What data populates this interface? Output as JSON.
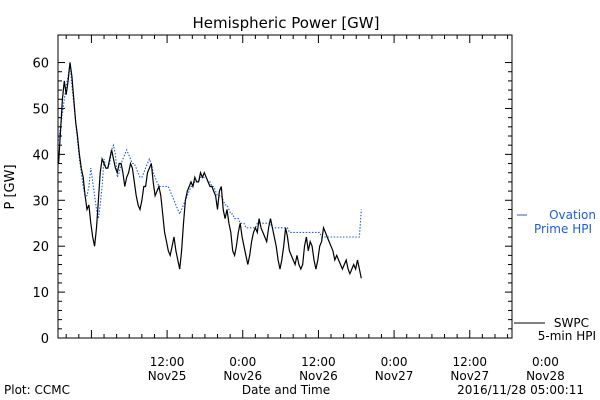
{
  "chart_data": {
    "type": "line",
    "title": "Hemispheric Power [GW]",
    "xlabel": "Date and Time",
    "ylabel": "P [GW]",
    "ylim": [
      0,
      66
    ],
    "xlim": [
      -5.3,
      66.7
    ],
    "x_units": "hours since 2016-11-25 00:00",
    "yticks": [
      0,
      10,
      20,
      30,
      40,
      50,
      60
    ],
    "xticks": [
      {
        "x": 12,
        "label": "12:00",
        "sublabel": "Nov25"
      },
      {
        "x": 24,
        "label": "0:00",
        "sublabel": "Nov26"
      },
      {
        "x": 36,
        "label": "12:00",
        "sublabel": "Nov26"
      },
      {
        "x": 48,
        "label": "0:00",
        "sublabel": "Nov27"
      },
      {
        "x": 60,
        "label": "12:00",
        "sublabel": "Nov27"
      },
      {
        "x": 72,
        "label": "0:00",
        "sublabel": "Nov28"
      }
    ],
    "series": [
      {
        "name": "SWPC",
        "name2": "5-min HPI",
        "color": "#000000",
        "style": "solid",
        "points": [
          [
            -5.2,
            38
          ],
          [
            -4.9,
            45
          ],
          [
            -4.6,
            52
          ],
          [
            -4.3,
            56
          ],
          [
            -4.0,
            53
          ],
          [
            -3.7,
            56
          ],
          [
            -3.4,
            60
          ],
          [
            -3.1,
            57
          ],
          [
            -2.8,
            52
          ],
          [
            -2.5,
            47
          ],
          [
            -2.2,
            44
          ],
          [
            -1.9,
            40
          ],
          [
            -1.6,
            37
          ],
          [
            -1.3,
            35
          ],
          [
            -1.0,
            31
          ],
          [
            -0.7,
            28
          ],
          [
            -0.4,
            29
          ],
          [
            -0.1,
            25
          ],
          [
            0.2,
            22
          ],
          [
            0.5,
            20
          ],
          [
            0.8,
            24
          ],
          [
            1.1,
            30
          ],
          [
            1.4,
            36
          ],
          [
            1.7,
            39
          ],
          [
            2.0,
            38
          ],
          [
            2.3,
            37
          ],
          [
            2.6,
            37
          ],
          [
            2.9,
            39
          ],
          [
            3.2,
            41
          ],
          [
            3.5,
            39
          ],
          [
            3.8,
            37
          ],
          [
            4.1,
            36
          ],
          [
            4.4,
            38
          ],
          [
            4.7,
            38
          ],
          [
            5.0,
            36
          ],
          [
            5.3,
            33
          ],
          [
            5.6,
            35
          ],
          [
            5.9,
            36
          ],
          [
            6.2,
            38
          ],
          [
            6.5,
            37
          ],
          [
            6.8,
            34
          ],
          [
            7.1,
            31
          ],
          [
            7.4,
            29
          ],
          [
            7.7,
            28
          ],
          [
            8.0,
            30
          ],
          [
            8.3,
            33
          ],
          [
            8.6,
            33
          ],
          [
            8.9,
            36
          ],
          [
            9.2,
            37
          ],
          [
            9.5,
            38
          ],
          [
            9.8,
            34
          ],
          [
            10.1,
            31
          ],
          [
            10.4,
            32
          ],
          [
            10.7,
            33
          ],
          [
            11.0,
            31
          ],
          [
            11.3,
            27
          ],
          [
            11.6,
            23
          ],
          [
            11.9,
            21
          ],
          [
            12.2,
            19
          ],
          [
            12.5,
            18
          ],
          [
            12.8,
            20
          ],
          [
            13.1,
            22
          ],
          [
            13.4,
            19
          ],
          [
            13.7,
            17
          ],
          [
            14.0,
            15
          ],
          [
            14.3,
            19
          ],
          [
            14.6,
            25
          ],
          [
            14.9,
            30
          ],
          [
            15.2,
            32
          ],
          [
            15.5,
            33
          ],
          [
            15.8,
            34
          ],
          [
            16.1,
            33
          ],
          [
            16.4,
            35
          ],
          [
            16.7,
            34
          ],
          [
            17.0,
            34
          ],
          [
            17.3,
            36
          ],
          [
            17.6,
            35
          ],
          [
            17.9,
            36
          ],
          [
            18.2,
            35
          ],
          [
            18.5,
            34
          ],
          [
            18.8,
            33
          ],
          [
            19.1,
            33
          ],
          [
            19.4,
            32
          ],
          [
            19.7,
            31
          ],
          [
            20.0,
            28
          ],
          [
            20.3,
            32
          ],
          [
            20.6,
            33
          ],
          [
            20.9,
            28
          ],
          [
            21.2,
            26
          ],
          [
            21.5,
            28
          ],
          [
            21.8,
            25
          ],
          [
            22.1,
            23
          ],
          [
            22.4,
            19
          ],
          [
            22.7,
            18
          ],
          [
            23.0,
            20
          ],
          [
            23.3,
            23
          ],
          [
            23.6,
            25
          ],
          [
            23.9,
            22
          ],
          [
            24.2,
            20
          ],
          [
            24.5,
            18
          ],
          [
            24.8,
            16
          ],
          [
            25.1,
            18
          ],
          [
            25.4,
            21
          ],
          [
            25.7,
            23
          ],
          [
            26.0,
            24
          ],
          [
            26.3,
            23
          ],
          [
            26.6,
            26
          ],
          [
            26.9,
            24
          ],
          [
            27.2,
            23
          ],
          [
            27.5,
            22
          ],
          [
            27.8,
            21
          ],
          [
            28.1,
            24
          ],
          [
            28.4,
            26
          ],
          [
            28.7,
            24
          ],
          [
            29.0,
            22
          ],
          [
            29.3,
            20
          ],
          [
            29.6,
            17
          ],
          [
            29.9,
            15
          ],
          [
            30.2,
            17
          ],
          [
            30.5,
            20
          ],
          [
            30.8,
            24
          ],
          [
            31.1,
            22
          ],
          [
            31.4,
            19
          ],
          [
            31.7,
            18
          ],
          [
            32.0,
            17
          ],
          [
            32.3,
            16
          ],
          [
            32.6,
            18
          ],
          [
            32.9,
            16
          ],
          [
            33.2,
            15
          ],
          [
            33.5,
            16
          ],
          [
            33.8,
            20
          ],
          [
            34.1,
            22
          ],
          [
            34.4,
            19
          ],
          [
            34.7,
            21
          ],
          [
            35.0,
            20
          ],
          [
            35.3,
            17
          ],
          [
            35.6,
            15
          ],
          [
            35.9,
            17
          ],
          [
            36.2,
            20
          ],
          [
            36.5,
            21
          ],
          [
            36.8,
            24
          ],
          [
            37.1,
            23
          ],
          [
            37.4,
            22
          ],
          [
            37.7,
            21
          ],
          [
            38.0,
            20
          ],
          [
            38.3,
            19
          ],
          [
            38.6,
            17
          ],
          [
            38.9,
            18
          ],
          [
            39.2,
            17
          ],
          [
            39.5,
            16
          ],
          [
            39.8,
            15
          ],
          [
            40.1,
            16
          ],
          [
            40.4,
            17
          ],
          [
            40.7,
            15
          ],
          [
            41.0,
            14
          ],
          [
            41.3,
            15
          ],
          [
            41.6,
            16
          ],
          [
            41.9,
            15
          ],
          [
            42.2,
            17
          ],
          [
            42.5,
            15
          ],
          [
            42.8,
            13
          ]
        ]
      },
      {
        "name": "Ovation",
        "name2": "Prime HPI",
        "color": "#1f5fd0",
        "style": "dotted",
        "points": [
          [
            -5.2,
            43
          ],
          [
            -4.9,
            46
          ],
          [
            -4.6,
            49
          ],
          [
            -4.3,
            52
          ],
          [
            -4.0,
            55
          ],
          [
            -3.7,
            57
          ],
          [
            -3.4,
            60
          ],
          [
            -3.1,
            55
          ],
          [
            -2.8,
            51
          ],
          [
            -2.5,
            47
          ],
          [
            -2.2,
            43
          ],
          [
            -1.9,
            39
          ],
          [
            -1.6,
            36
          ],
          [
            -1.3,
            33
          ],
          [
            -1.0,
            31
          ],
          [
            -0.7,
            31
          ],
          [
            -0.4,
            33
          ],
          [
            -0.1,
            37
          ],
          [
            0.2,
            34
          ],
          [
            0.5,
            31
          ],
          [
            0.8,
            28
          ],
          [
            1.1,
            26
          ],
          [
            1.4,
            29
          ],
          [
            1.7,
            33
          ],
          [
            2.0,
            39
          ],
          [
            2.3,
            37
          ],
          [
            2.6,
            37
          ],
          [
            2.9,
            38
          ],
          [
            3.2,
            41
          ],
          [
            3.5,
            42
          ],
          [
            3.8,
            40
          ],
          [
            4.1,
            35
          ],
          [
            4.4,
            36
          ],
          [
            4.7,
            38
          ],
          [
            5.0,
            39
          ],
          [
            5.3,
            40
          ],
          [
            5.6,
            41
          ],
          [
            5.9,
            40
          ],
          [
            6.2,
            39
          ],
          [
            6.5,
            38
          ],
          [
            6.8,
            38
          ],
          [
            7.1,
            37
          ],
          [
            7.4,
            36
          ],
          [
            7.7,
            35
          ],
          [
            8.0,
            35
          ],
          [
            8.3,
            36
          ],
          [
            8.6,
            37
          ],
          [
            8.9,
            38
          ],
          [
            9.2,
            39
          ],
          [
            9.5,
            38
          ],
          [
            9.8,
            36
          ],
          [
            10.1,
            35
          ],
          [
            10.4,
            34
          ],
          [
            10.7,
            33
          ],
          [
            11.0,
            33
          ],
          [
            11.3,
            33
          ],
          [
            11.6,
            33
          ],
          [
            11.9,
            33
          ],
          [
            12.2,
            33
          ],
          [
            12.5,
            32
          ],
          [
            12.8,
            31
          ],
          [
            13.1,
            30
          ],
          [
            13.4,
            29
          ],
          [
            13.7,
            28
          ],
          [
            14.0,
            27
          ],
          [
            14.3,
            28
          ],
          [
            14.6,
            29
          ],
          [
            14.9,
            30
          ],
          [
            15.2,
            31
          ],
          [
            15.5,
            32
          ],
          [
            15.8,
            33
          ],
          [
            16.1,
            33
          ],
          [
            16.4,
            34
          ],
          [
            16.7,
            34
          ],
          [
            17.0,
            34
          ],
          [
            17.3,
            35
          ],
          [
            17.6,
            35
          ],
          [
            17.9,
            35
          ],
          [
            18.2,
            35
          ],
          [
            18.5,
            34
          ],
          [
            18.8,
            34
          ],
          [
            19.1,
            33
          ],
          [
            19.4,
            33
          ],
          [
            19.7,
            32
          ],
          [
            20.0,
            31
          ],
          [
            20.3,
            31
          ],
          [
            20.6,
            31
          ],
          [
            20.9,
            30
          ],
          [
            21.2,
            29
          ],
          [
            21.5,
            29
          ],
          [
            21.8,
            28
          ],
          [
            22.1,
            27
          ],
          [
            22.4,
            27
          ],
          [
            22.7,
            26
          ],
          [
            23.0,
            26
          ],
          [
            23.3,
            26
          ],
          [
            23.6,
            25
          ],
          [
            23.9,
            25
          ],
          [
            24.2,
            25
          ],
          [
            24.5,
            24
          ],
          [
            24.8,
            24
          ],
          [
            25.1,
            24
          ],
          [
            25.4,
            24
          ],
          [
            25.7,
            24
          ],
          [
            26.0,
            24
          ],
          [
            26.3,
            25
          ],
          [
            26.6,
            25
          ],
          [
            26.9,
            25
          ],
          [
            27.2,
            25
          ],
          [
            27.5,
            25
          ],
          [
            27.8,
            25
          ],
          [
            28.1,
            25
          ],
          [
            28.4,
            25
          ],
          [
            28.7,
            24
          ],
          [
            29.0,
            24
          ],
          [
            29.3,
            24
          ],
          [
            29.6,
            24
          ],
          [
            29.9,
            24
          ],
          [
            30.2,
            24
          ],
          [
            30.5,
            24
          ],
          [
            30.8,
            24
          ],
          [
            31.1,
            24
          ],
          [
            31.4,
            23
          ],
          [
            31.7,
            23
          ],
          [
            32.0,
            23
          ],
          [
            32.3,
            23
          ],
          [
            32.6,
            23
          ],
          [
            32.9,
            23
          ],
          [
            33.2,
            23
          ],
          [
            33.5,
            23
          ],
          [
            33.8,
            23
          ],
          [
            34.1,
            23
          ],
          [
            34.4,
            23
          ],
          [
            34.7,
            23
          ],
          [
            35.0,
            23
          ],
          [
            35.3,
            23
          ],
          [
            35.6,
            23
          ],
          [
            35.9,
            23
          ],
          [
            36.2,
            23
          ],
          [
            36.5,
            22
          ],
          [
            36.8,
            22
          ],
          [
            37.1,
            22
          ],
          [
            37.4,
            22
          ],
          [
            37.7,
            22
          ],
          [
            38.0,
            22
          ],
          [
            38.3,
            22
          ],
          [
            38.6,
            22
          ],
          [
            38.9,
            22
          ],
          [
            39.2,
            22
          ],
          [
            39.5,
            22
          ],
          [
            39.8,
            22
          ],
          [
            40.1,
            22
          ],
          [
            40.4,
            22
          ],
          [
            40.7,
            22
          ],
          [
            41.0,
            22
          ],
          [
            41.3,
            22
          ],
          [
            41.6,
            22
          ],
          [
            41.9,
            22
          ],
          [
            42.2,
            22
          ],
          [
            42.5,
            22
          ],
          [
            42.8,
            28
          ]
        ]
      }
    ],
    "legend": "right",
    "grid": false
  },
  "footer": {
    "left": "Plot: CCMC",
    "right": "2016/11/28 05:00:11"
  }
}
